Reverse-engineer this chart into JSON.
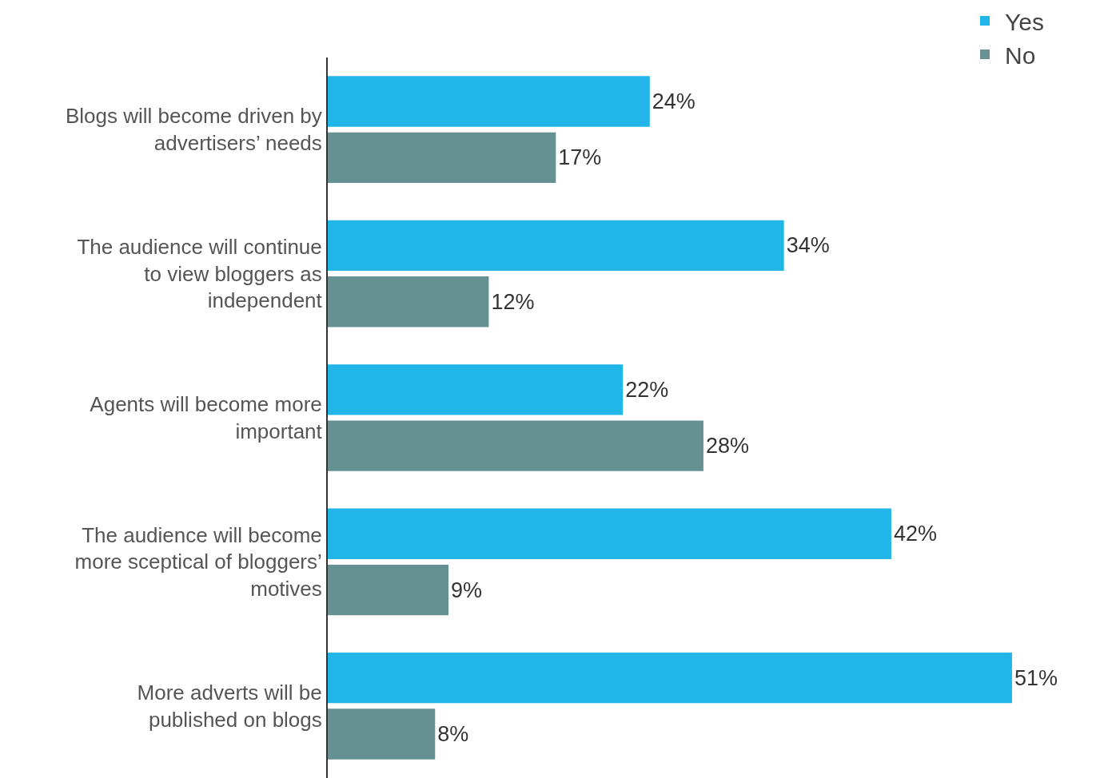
{
  "chart_data": {
    "type": "bar",
    "orientation": "horizontal",
    "categories": [
      "Blogs will become driven by advertisers’ needs",
      "The audience will continue to view bloggers as independent",
      "Agents will become more important",
      "The audience will become more sceptical of bloggers’ motives",
      "More adverts will be published on blogs"
    ],
    "series": [
      {
        "name": "Yes",
        "color": "#21b5e8",
        "values": [
          24,
          34,
          22,
          42,
          51
        ],
        "value_labels": [
          "24%",
          "34%",
          "22%",
          "42%",
          "51%"
        ]
      },
      {
        "name": "No",
        "color": "#669193",
        "values": [
          17,
          12,
          28,
          9,
          8
        ],
        "value_labels": [
          "17%",
          "12%",
          "28%",
          "9%",
          "8%"
        ]
      }
    ],
    "legend": "top right",
    "grid": false,
    "tick_labels": "y"
  }
}
